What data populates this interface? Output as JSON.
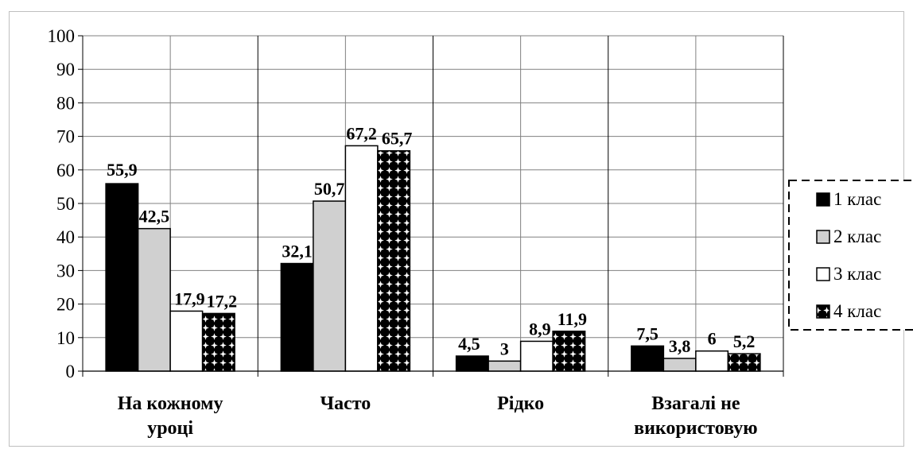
{
  "chart_data": {
    "type": "bar",
    "categories": [
      [
        "На кожному",
        "уроці"
      ],
      [
        "Часто"
      ],
      [
        "Рідко"
      ],
      [
        "Взагалі не",
        "використовую"
      ]
    ],
    "series": [
      {
        "name": "1 клас",
        "values": [
          55.9,
          32.1,
          4.5,
          7.5
        ],
        "labels": [
          "55,9",
          "32,1",
          "4,5",
          "7,5"
        ],
        "fill": "solid-black"
      },
      {
        "name": "2 клас",
        "values": [
          42.5,
          50.7,
          3,
          3.8
        ],
        "labels": [
          "42,5",
          "50,7",
          "3",
          "3,8"
        ],
        "fill": "light-gray"
      },
      {
        "name": "3 клас",
        "values": [
          17.9,
          67.2,
          8.9,
          6
        ],
        "labels": [
          "17,9",
          "67,2",
          "8,9",
          "6"
        ],
        "fill": "white"
      },
      {
        "name": "4 клас",
        "values": [
          17.2,
          65.7,
          11.9,
          5.2
        ],
        "labels": [
          "17,2",
          "65,7",
          "11,9",
          "5,2"
        ],
        "fill": "black-dot-pattern"
      }
    ],
    "y_ticks": [
      0,
      10,
      20,
      30,
      40,
      50,
      60,
      70,
      80,
      90,
      100
    ],
    "ylim": [
      0,
      100
    ],
    "grid": true,
    "legend": "right"
  },
  "colors": {
    "series_1": "#000000",
    "series_2": "#d0d0d0",
    "series_3": "#ffffff",
    "gridline": "#808080",
    "border": "#bfbfbf"
  }
}
